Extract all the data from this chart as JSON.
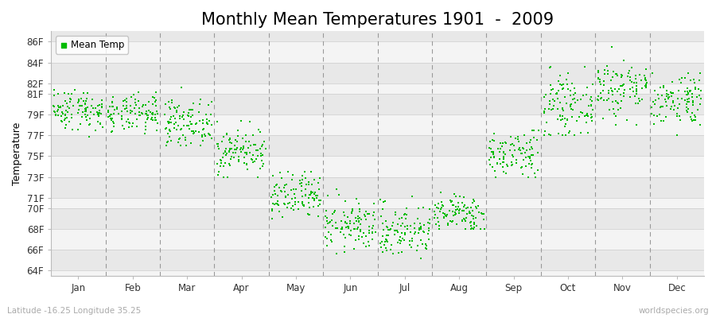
{
  "title": "Monthly Mean Temperatures 1901  -  2009",
  "ylabel": "Temperature",
  "xlabel_bottom": "Latitude -16.25 Longitude 35.25",
  "watermark": "worldspecies.org",
  "legend_label": "Mean Temp",
  "dot_color": "#00bb00",
  "background_color": "#ffffff",
  "plot_bg_light": "#f4f4f4",
  "plot_bg_dark": "#e8e8e8",
  "ylim": [
    63.5,
    87.0
  ],
  "ytick_labels": [
    "64F",
    "66F",
    "68F",
    "70F",
    "71F",
    "73F",
    "75F",
    "77F",
    "79F",
    "81F",
    "82F",
    "84F",
    "86F"
  ],
  "ytick_values": [
    64,
    66,
    68,
    70,
    71,
    73,
    75,
    77,
    79,
    81,
    82,
    84,
    86
  ],
  "months": [
    "Jan",
    "Feb",
    "Mar",
    "Apr",
    "May",
    "Jun",
    "Jul",
    "Aug",
    "Sep",
    "Oct",
    "Nov",
    "Dec"
  ],
  "monthly_means": [
    79.5,
    79.0,
    78.2,
    75.5,
    71.0,
    68.3,
    67.8,
    69.5,
    75.2,
    79.8,
    81.5,
    80.5
  ],
  "monthly_stds": [
    1.0,
    0.9,
    1.1,
    1.1,
    1.2,
    1.2,
    1.3,
    0.9,
    1.2,
    1.4,
    1.5,
    1.3
  ],
  "monthly_mins": [
    76.5,
    76.5,
    76.0,
    73.0,
    68.5,
    64.5,
    64.0,
    68.0,
    73.0,
    77.0,
    78.0,
    77.0
  ],
  "monthly_maxs": [
    82.0,
    81.5,
    82.0,
    79.0,
    73.5,
    72.5,
    72.5,
    71.5,
    77.5,
    85.0,
    85.5,
    83.0
  ],
  "n_years": 109,
  "title_fontsize": 15,
  "axis_fontsize": 8.5,
  "label_fontsize": 9,
  "tick_fontsize": 8.5
}
